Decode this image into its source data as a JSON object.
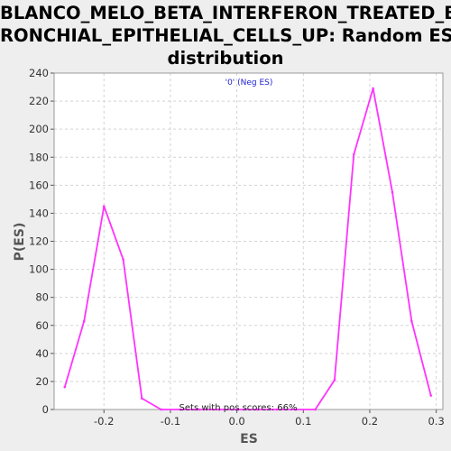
{
  "chart_data": {
    "type": "line",
    "title_lines": [
      "BLANCO_MELO_BETA_INTERFERON_TREATED_B",
      "RONCHIAL_EPITHELIAL_CELLS_UP: Random ES",
      "distribution"
    ],
    "xlabel": "ES",
    "ylabel": "P(ES)",
    "xlim": [
      -0.275,
      0.31
    ],
    "ylim": [
      0,
      240
    ],
    "x_ticks": [
      -0.2,
      -0.1,
      0.0,
      0.1,
      0.2,
      0.3
    ],
    "x_tick_labels": [
      "-0.2",
      "-0.1",
      "0.0",
      "0.1",
      "0.2",
      "0.3"
    ],
    "y_ticks": [
      0,
      20,
      40,
      60,
      80,
      100,
      120,
      140,
      160,
      180,
      200,
      220,
      240
    ],
    "y_tick_labels": [
      "0",
      "20",
      "40",
      "60",
      "80",
      "100",
      "120",
      "140",
      "160",
      "180",
      "200",
      "220",
      "240"
    ],
    "grid": true,
    "legend_text": "'0' (Neg ES)",
    "annotation": "Sets with pos scores: 66%",
    "series": [
      {
        "color": "#ff33ff",
        "x": [
          -0.259,
          -0.23,
          -0.2,
          -0.171,
          -0.143,
          -0.114,
          -0.085,
          -0.056,
          -0.027,
          0.002,
          0.031,
          0.06,
          0.089,
          0.118,
          0.147,
          0.176,
          0.205,
          0.234,
          0.263,
          0.292
        ],
        "y": [
          16,
          63,
          145,
          107,
          8,
          0,
          0,
          0,
          0,
          0,
          0,
          0,
          0,
          0,
          21,
          182,
          229,
          155,
          63,
          10
        ]
      }
    ]
  },
  "colors": {
    "background": "#eeeeee",
    "plot_background": "#ffffff",
    "grid": "#d4d4d4",
    "legend_text": "#1f1fd0"
  }
}
